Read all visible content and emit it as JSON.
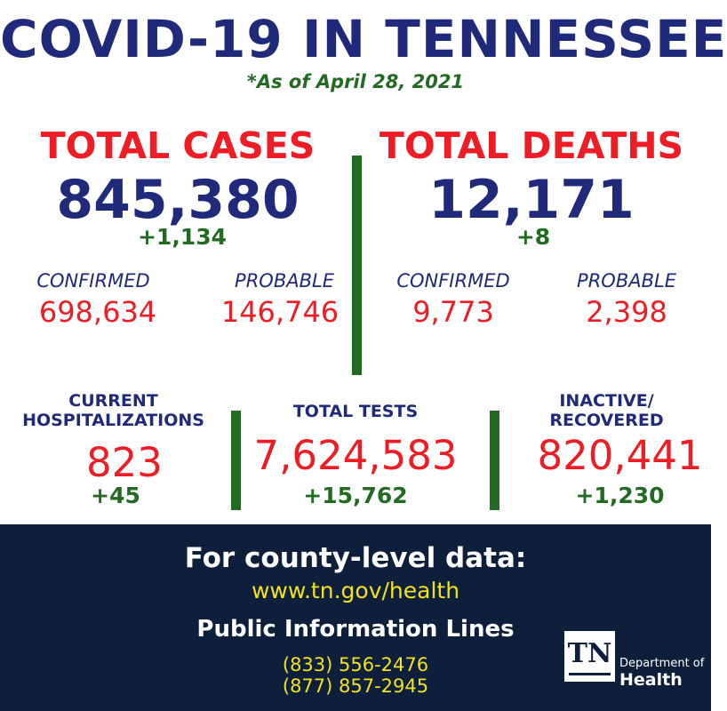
{
  "header": {
    "title": "COVID-19 IN TENNESSEE",
    "as_of": "*As of April 28, 2021"
  },
  "cases": {
    "label": "TOTAL CASES",
    "total": "845,380",
    "delta": "+1,134",
    "confirmed_label": "CONFIRMED",
    "confirmed": "698,634",
    "probable_label": "PROBABLE",
    "probable": "146,746"
  },
  "deaths": {
    "label": "TOTAL DEATHS",
    "total": "12,171",
    "delta": "+8",
    "confirmed_label": "CONFIRMED",
    "confirmed": "9,773",
    "probable_label": "PROBABLE",
    "probable": "2,398"
  },
  "hospitalizations": {
    "label_line1": "CURRENT",
    "label_line2": "HOSPITALIZATIONS",
    "value": "823",
    "delta": "+45"
  },
  "tests": {
    "label": "TOTAL TESTS",
    "value": "7,624,583",
    "delta": "+15,762"
  },
  "recovered": {
    "label_line1": "INACTIVE/",
    "label_line2": "RECOVERED",
    "value": "820,441",
    "delta": "+1,230"
  },
  "footer": {
    "heading": "For county-level data:",
    "url": "www.tn.gov/health",
    "lines_heading": "Public Information Lines",
    "phone1": "(833) 556-2476",
    "phone2": "(877) 857-2945"
  },
  "logo": {
    "mark": "TN",
    "dept": "Department of",
    "health": "Health"
  },
  "colors": {
    "navy": "#1f2a7a",
    "red": "#ee1c25",
    "green": "#236b22",
    "footer_bg": "#0d1f3a",
    "yellow": "#f3e21a"
  }
}
